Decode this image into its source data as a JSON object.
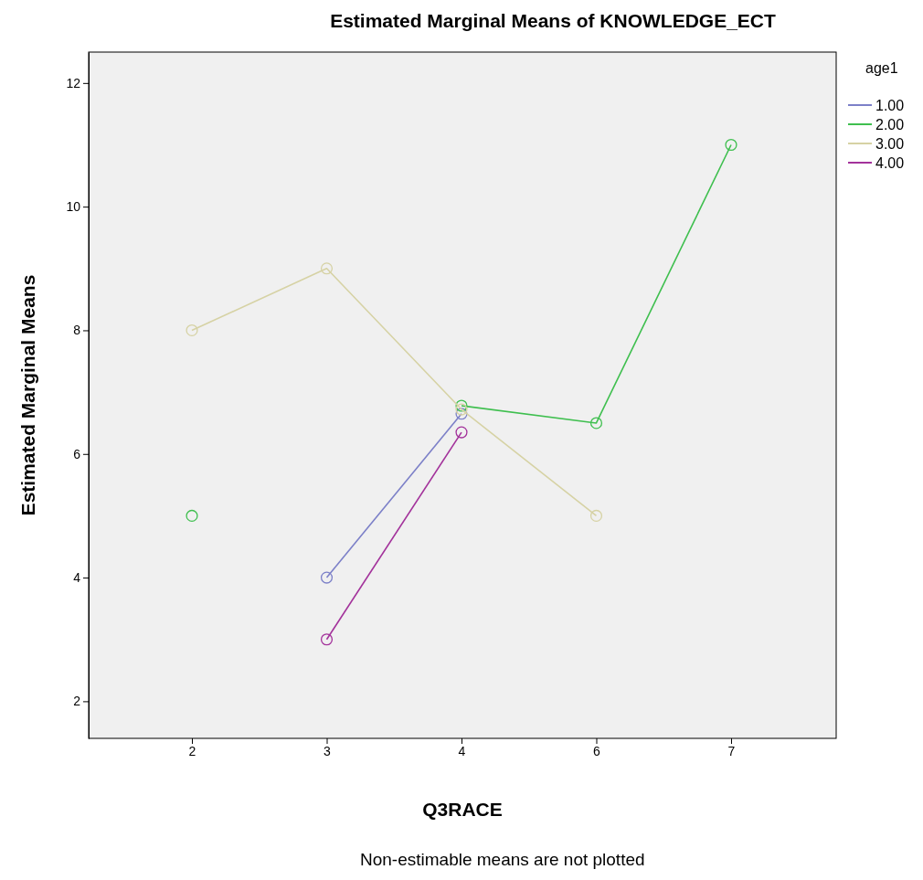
{
  "chart_data": {
    "type": "line",
    "title": "Estimated Marginal Means of KNOWLEDGE_ECT",
    "xlabel": "Q3RACE",
    "ylabel": "Estimated Marginal Means",
    "legend_title": "age1",
    "annotations": [
      "Non-estimable means are not plotted"
    ],
    "categories": [
      "2",
      "3",
      "4",
      "6",
      "7"
    ],
    "series": [
      {
        "name": "1.00",
        "color": "#7c80c8",
        "values": [
          null,
          4,
          6.65,
          null,
          null
        ]
      },
      {
        "name": "2.00",
        "color": "#3fbf4f",
        "values": [
          5,
          null,
          6.78,
          6.5,
          11
        ]
      },
      {
        "name": "3.00",
        "color": "#d6d2a4",
        "values": [
          8,
          9,
          6.72,
          5,
          null
        ]
      },
      {
        "name": "4.00",
        "color": "#a3329b",
        "values": [
          null,
          3,
          6.35,
          null,
          null
        ]
      }
    ],
    "ylim": [
      1.4,
      12.5
    ],
    "yticks": [
      2,
      4,
      6,
      8,
      10,
      12
    ],
    "grid": false,
    "legend": "right",
    "marker": "circle",
    "line_style": "solid"
  }
}
